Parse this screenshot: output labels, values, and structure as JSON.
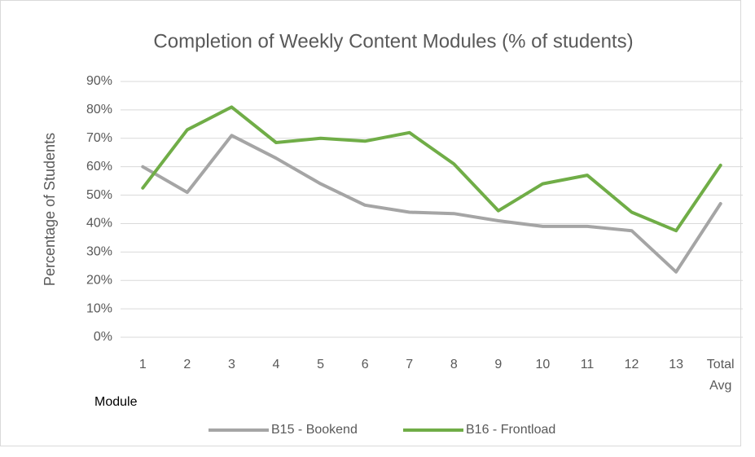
{
  "chart_data": {
    "type": "line",
    "title": "Completion of Weekly Content Modules (% of students)",
    "y_label": "Percentage of Students",
    "x_label": "Module",
    "categories": [
      "1",
      "2",
      "3",
      "4",
      "5",
      "6",
      "7",
      "8",
      "9",
      "10",
      "11",
      "12",
      "13",
      "Total Avg"
    ],
    "series": [
      {
        "name": "B15 - Bookend",
        "color": "#a5a5a5",
        "values": [
          60,
          51,
          71,
          63,
          54,
          46.5,
          44,
          43.5,
          41,
          39,
          39,
          37.5,
          23,
          47
        ]
      },
      {
        "name": "B16 - Frontload",
        "color": "#70ad47",
        "values": [
          52.5,
          73,
          81,
          68.5,
          70,
          69,
          72,
          61,
          44.5,
          54,
          57,
          44,
          37.5,
          60.5
        ]
      }
    ],
    "ylim": [
      0,
      90
    ],
    "yticks": [
      {
        "value": 0,
        "label": "0%"
      },
      {
        "value": 10,
        "label": "10%"
      },
      {
        "value": 20,
        "label": "20%"
      },
      {
        "value": 30,
        "label": "30%"
      },
      {
        "value": 40,
        "label": "40%"
      },
      {
        "value": 50,
        "label": "50%"
      },
      {
        "value": 60,
        "label": "60%"
      },
      {
        "value": 70,
        "label": "70%"
      },
      {
        "value": 80,
        "label": "80%"
      },
      {
        "value": 90,
        "label": "90%"
      }
    ],
    "grid": true,
    "legend": "bottom"
  }
}
